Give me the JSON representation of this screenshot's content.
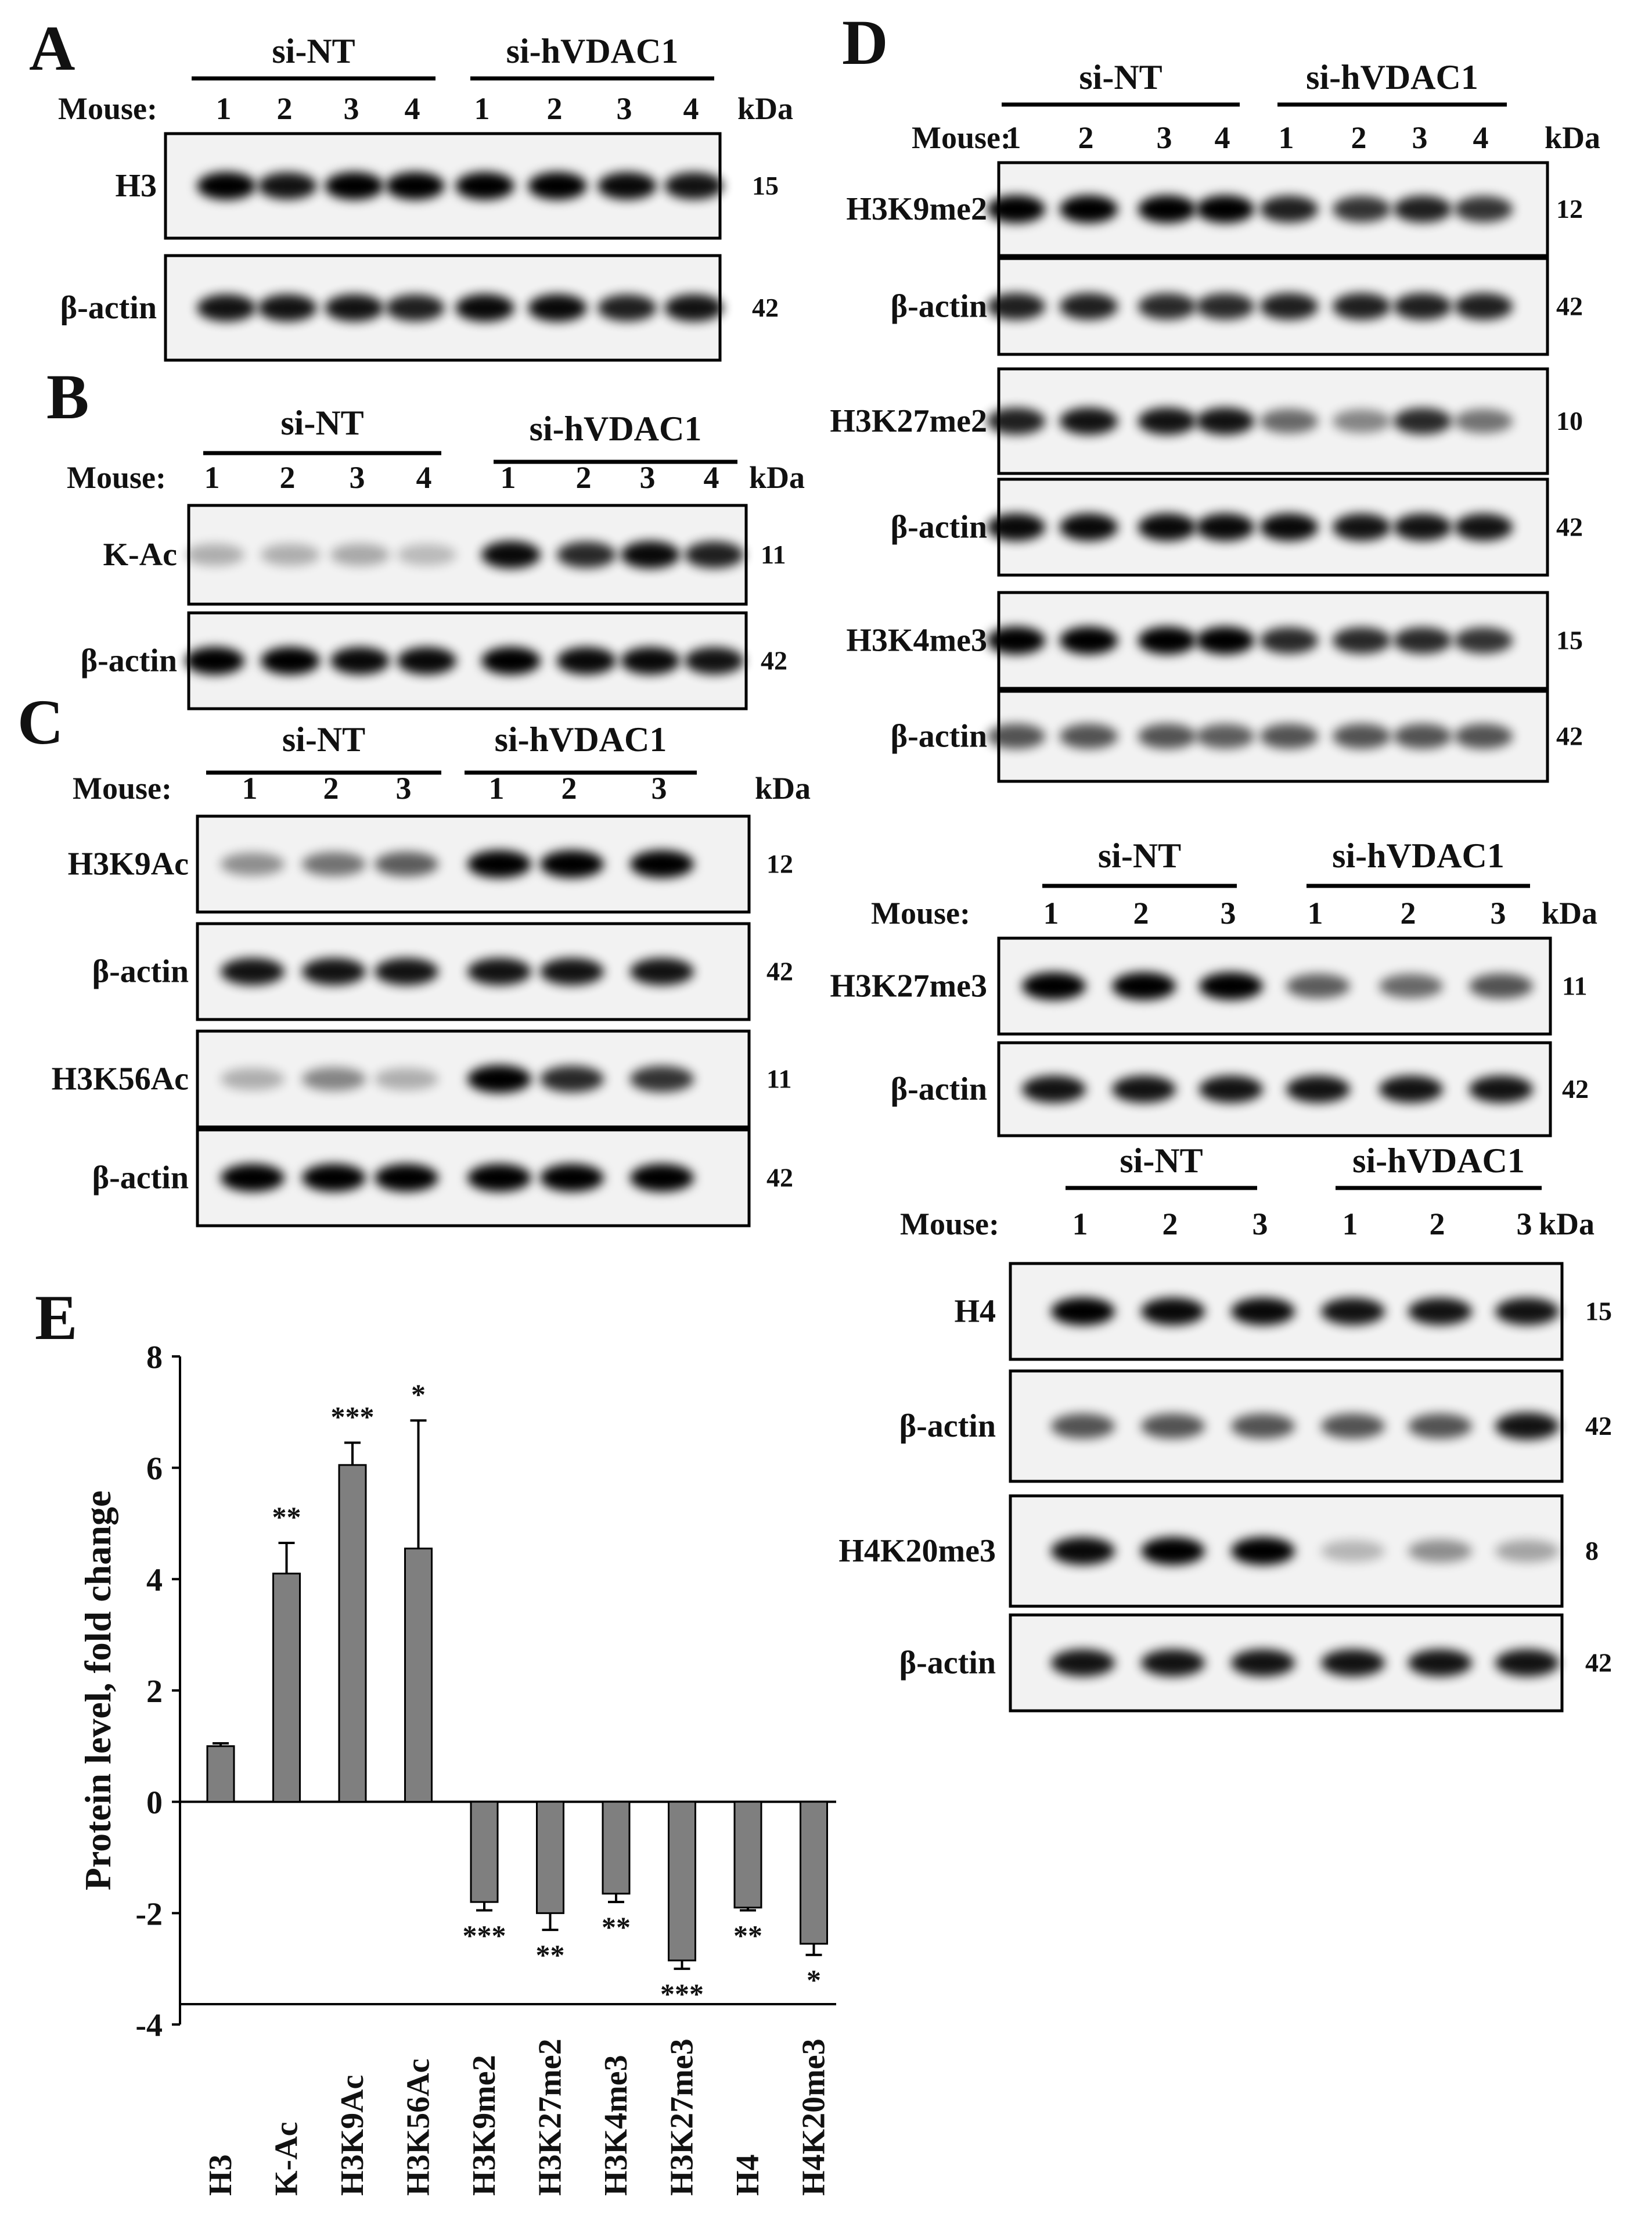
{
  "panels": {
    "A": {
      "label": "A",
      "group1": "si-NT",
      "group2": "si-hVDAC1",
      "mouse_label": "Mouse:",
      "lanes1": [
        "1",
        "2",
        "3",
        "4"
      ],
      "lanes2": [
        "1",
        "2",
        "3",
        "4"
      ],
      "kda_label": "kDa",
      "blots": [
        {
          "protein": "H3",
          "kda": "15"
        },
        {
          "protein": "β-actin",
          "kda": "42"
        }
      ]
    },
    "B": {
      "label": "B",
      "group1": "si-NT",
      "group2": "si-hVDAC1",
      "mouse_label": "Mouse:",
      "lanes1": [
        "1",
        "2",
        "3",
        "4"
      ],
      "lanes2": [
        "1",
        "2",
        "3",
        "4"
      ],
      "kda_label": "kDa",
      "blots": [
        {
          "protein": "K-Ac",
          "kda": "11"
        },
        {
          "protein": "β-actin",
          "kda": "42"
        }
      ]
    },
    "C": {
      "label": "C",
      "group1": "si-NT",
      "group2": "si-hVDAC1",
      "mouse_label": "Mouse:",
      "lanes1": [
        "1",
        "2",
        "3"
      ],
      "lanes2": [
        "1",
        "2",
        "3"
      ],
      "kda_label": "kDa",
      "blots": [
        {
          "protein": "H3K9Ac",
          "kda": "12"
        },
        {
          "protein": "β-actin",
          "kda": "42"
        },
        {
          "protein": "H3K56Ac",
          "kda": "11"
        },
        {
          "protein": "β-actin",
          "kda": "42"
        }
      ]
    },
    "D": {
      "label": "D",
      "group1": "si-NT",
      "group2": "si-hVDAC1",
      "mouse_label": "Mouse:",
      "lanes1": [
        "1",
        "2",
        "3",
        "4"
      ],
      "lanes2": [
        "1",
        "2",
        "3",
        "4"
      ],
      "kda_label": "kDa",
      "blots": [
        {
          "protein": "H3K9me2",
          "kda": "12"
        },
        {
          "protein": "β-actin",
          "kda": "42"
        },
        {
          "protein": "H3K27me2",
          "kda": "10"
        },
        {
          "protein": "β-actin",
          "kda": "42"
        },
        {
          "protein": "H3K4me3",
          "kda": "15"
        },
        {
          "protein": "β-actin",
          "kda": "42"
        }
      ]
    },
    "D2": {
      "group1": "si-NT",
      "group2": "si-hVDAC1",
      "mouse_label": "Mouse:",
      "lanes1": [
        "1",
        "2",
        "3"
      ],
      "lanes2": [
        "1",
        "2",
        "3"
      ],
      "kda_label": "kDa",
      "blots": [
        {
          "protein": "H3K27me3",
          "kda": "11"
        },
        {
          "protein": "β-actin",
          "kda": "42"
        }
      ]
    },
    "D3": {
      "group1": "si-NT",
      "group2": "si-hVDAC1",
      "mouse_label": "Mouse:",
      "lanes1": [
        "1",
        "2",
        "3"
      ],
      "lanes2": [
        "1",
        "2",
        "3"
      ],
      "kda_label": "kDa",
      "blots": [
        {
          "protein": "H4",
          "kda": "15"
        },
        {
          "protein": "β-actin",
          "kda": "42"
        },
        {
          "protein": "H4K20me3",
          "kda": "8"
        },
        {
          "protein": "β-actin",
          "kda": "42"
        }
      ]
    },
    "E": {
      "label": "E"
    }
  },
  "chart_data": {
    "type": "bar",
    "title": "",
    "ylabel": "Protein level, fold change",
    "xlabel": "",
    "ylim": [
      -4,
      8
    ],
    "yticks": [
      "8",
      "6",
      "4",
      "2",
      "0",
      "-2",
      "-4"
    ],
    "categories": [
      "H3",
      "K-Ac",
      "H3K9Ac",
      "H3K56Ac",
      "H3K9me2",
      "H3K27me2",
      "H3K4me3",
      "H3K27me3",
      "H4",
      "H4K20me3"
    ],
    "values": [
      1.0,
      4.1,
      6.05,
      4.55,
      -1.8,
      -2.0,
      -1.65,
      -2.85,
      -1.9,
      -2.55
    ],
    "errors": [
      0.05,
      0.55,
      0.4,
      2.3,
      0.15,
      0.3,
      0.15,
      0.15,
      0.05,
      0.2
    ],
    "significance": [
      "",
      "**",
      "***",
      "*",
      "***",
      "**",
      "**",
      "***",
      "**",
      "*"
    ],
    "bar_color": "#7f7f7f",
    "grid": false
  }
}
